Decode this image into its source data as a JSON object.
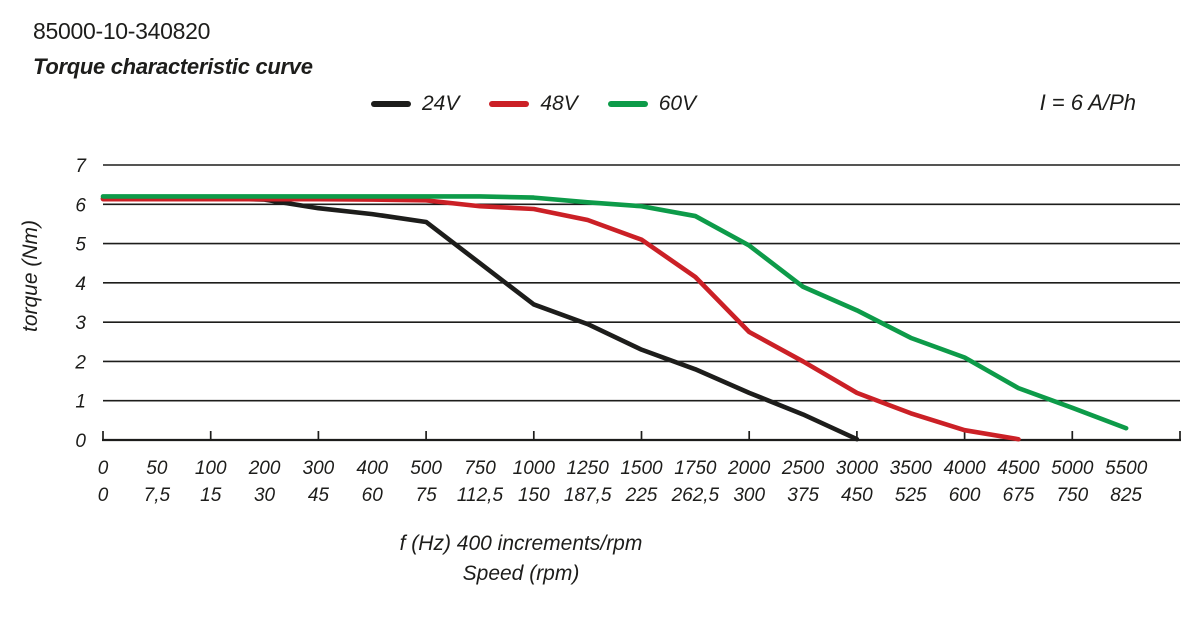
{
  "header": {
    "part_number": "85000-10-340820",
    "title": "Torque characteristic curve",
    "current_annotation": "I = 6 A/Ph"
  },
  "chart_data": {
    "type": "line",
    "title": "Torque characteristic curve",
    "x_axis": {
      "caption_line1": "f (Hz) 400 increments/rpm",
      "caption_line2": "Speed (rpm)",
      "frequency_labels": [
        "0",
        "50",
        "100",
        "200",
        "300",
        "400",
        "500",
        "750",
        "1000",
        "1250",
        "1500",
        "1750",
        "2000",
        "2500",
        "3000",
        "3500",
        "4000",
        "4500",
        "5000",
        "5500"
      ],
      "speed_labels": [
        "0",
        "7,5",
        "15",
        "30",
        "45",
        "60",
        "75",
        "112,5",
        "150",
        "187,5",
        "225",
        "262,5",
        "300",
        "375",
        "450",
        "525",
        "600",
        "675",
        "750",
        "825"
      ],
      "tick_every": 2
    },
    "y_axis": {
      "label": "torque (Nm)",
      "ticks": [
        7,
        6,
        5,
        4,
        3,
        2,
        1,
        0
      ],
      "range": [
        0,
        7
      ]
    },
    "grid": "horizontal",
    "grid_color": "#1d1d1b",
    "legend_position": "top-center",
    "series": [
      {
        "name": "24V",
        "color": "#1d1d1b",
        "values": [
          6.15,
          6.15,
          6.15,
          6.12,
          5.9,
          5.75,
          5.55,
          4.5,
          3.45,
          2.95,
          2.3,
          1.8,
          1.2,
          0.65,
          0.02
        ]
      },
      {
        "name": "48V",
        "color": "#cb2026",
        "values": [
          6.13,
          6.13,
          6.13,
          6.13,
          6.13,
          6.12,
          6.1,
          5.95,
          5.88,
          5.6,
          5.1,
          4.15,
          2.75,
          2.0,
          1.2,
          0.68,
          0.25,
          0.02
        ]
      },
      {
        "name": "60V",
        "color": "#0d9b49",
        "values": [
          6.2,
          6.2,
          6.2,
          6.2,
          6.2,
          6.2,
          6.2,
          6.2,
          6.17,
          6.05,
          5.95,
          5.7,
          4.95,
          3.9,
          3.3,
          2.6,
          2.1,
          1.32,
          0.82,
          0.3
        ]
      }
    ]
  }
}
